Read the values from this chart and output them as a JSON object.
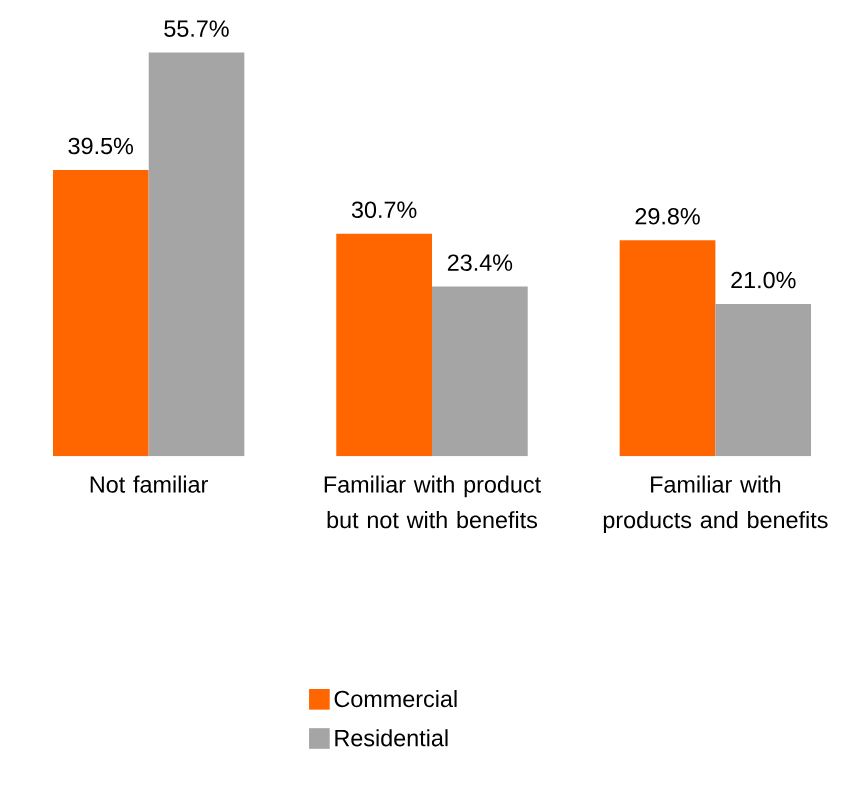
{
  "chart_data": {
    "type": "bar",
    "categories": [
      "Not familiar",
      "Familiar with product but not with benefits",
      "Familiar with products and benefits"
    ],
    "series": [
      {
        "name": "Commercial",
        "color": "#ff6600",
        "values": [
          39.5,
          30.7,
          29.8
        ],
        "value_labels": [
          "39.5%",
          "30.7%",
          "29.8%"
        ]
      },
      {
        "name": "Residential",
        "color": "#a5a5a5",
        "values": [
          55.7,
          23.4,
          21.0
        ],
        "value_labels": [
          "55.7%",
          "23.4%",
          "21.0%"
        ]
      }
    ],
    "legend": "bottom"
  }
}
